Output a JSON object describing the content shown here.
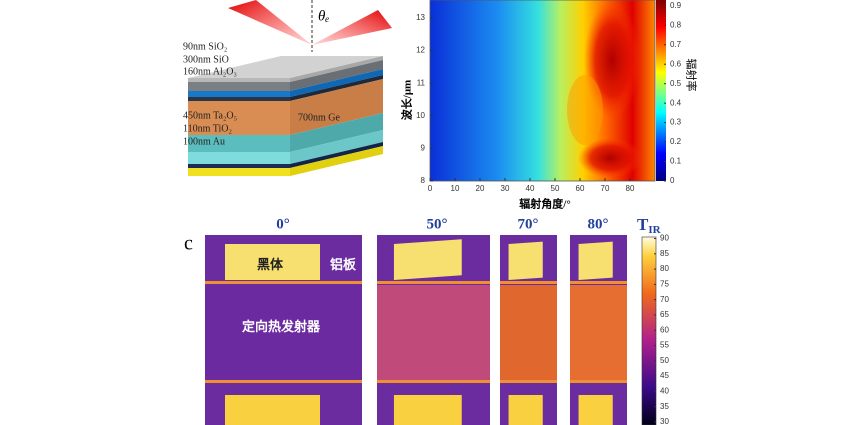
{
  "panel_a": {
    "theta": "θₑ",
    "ge_label": "700nm Ge",
    "layers": [
      "90nm SiO₂",
      "300nm SiO",
      "160nm Al₂O₃",
      "450nm Ta₂O₅",
      "110nm TiO₂",
      "100nm Au"
    ]
  },
  "panel_b": {
    "xlabel": "辐射角度/°",
    "ylabel": "波长/μm",
    "colorbar_label": "辐射率",
    "xlim": [
      0,
      90
    ],
    "xticks": [
      0,
      10,
      20,
      30,
      40,
      50,
      60,
      70,
      80
    ],
    "ylim": [
      8,
      13.55
    ],
    "yticks": [
      8,
      9,
      10,
      11,
      12,
      13
    ],
    "clim": [
      0,
      0.93
    ],
    "cticks": [
      0,
      0.1,
      0.2,
      0.3,
      0.4,
      0.5,
      0.6,
      0.7,
      0.8,
      0.9
    ]
  },
  "panel_c": {
    "label": "c",
    "angles": [
      "0°",
      "50°",
      "70°",
      "80°"
    ],
    "blackbody": "黑体",
    "plate": "铝板",
    "emitter": "定向热发射器",
    "colorbar_title": "T",
    "colorbar_sub": "IR",
    "clim": [
      29,
      90.5
    ],
    "cticks": [
      30,
      35,
      40,
      45,
      50,
      55,
      60,
      65,
      70,
      75,
      80,
      85,
      90
    ]
  }
}
